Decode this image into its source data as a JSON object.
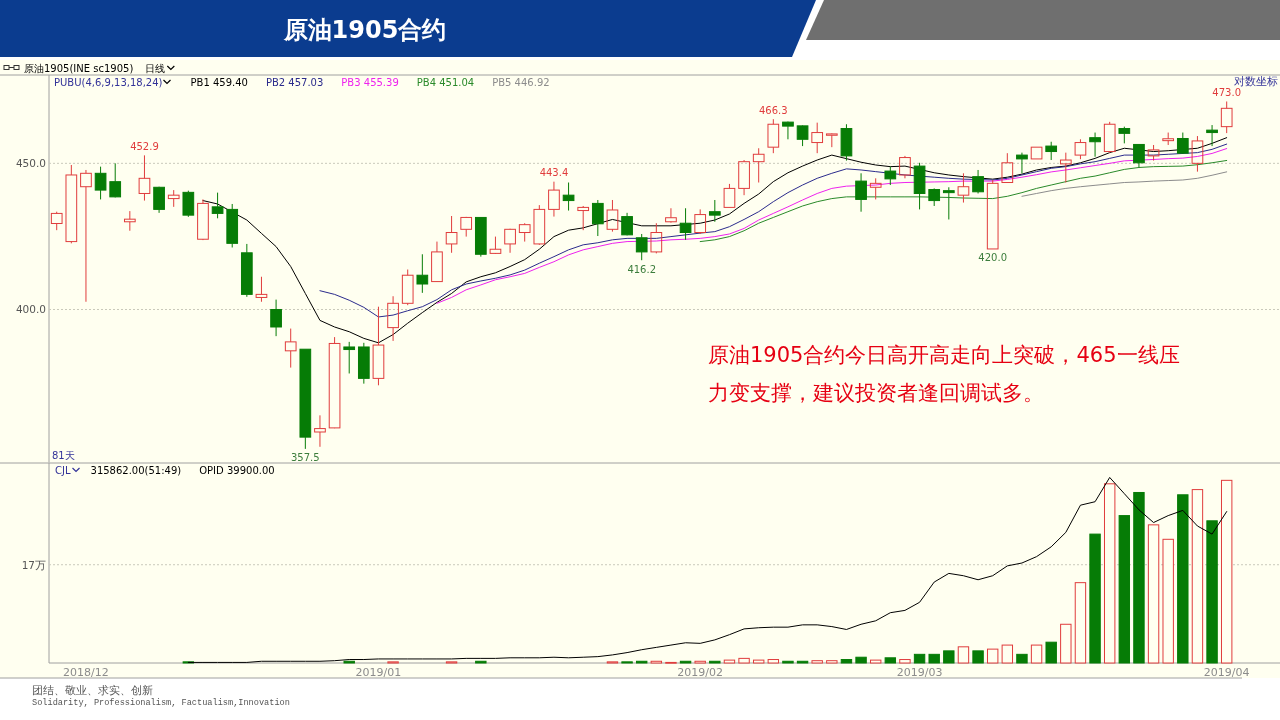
{
  "chart_data": [
    {
      "type": "candlestick",
      "title": "原油1905合约",
      "subtitle": "原油1905(INE sc1905)",
      "legend_title": "PUBU(4,6,9,13,18,24)",
      "categories": [
        null,
        null,
        null,
        null,
        null,
        null,
        null,
        null,
        null,
        null,
        null,
        null,
        null,
        null,
        null,
        null,
        null,
        null,
        null,
        null,
        null,
        null,
        null,
        null,
        null,
        null,
        null,
        null,
        null,
        null,
        null,
        null,
        null,
        null,
        null,
        null,
        null,
        null,
        null,
        null,
        null,
        null,
        null,
        null,
        null,
        null,
        null,
        null,
        null,
        null,
        null,
        null,
        null,
        null,
        null,
        null,
        null,
        null,
        null,
        null,
        null,
        null,
        null,
        null,
        null,
        null,
        null,
        null,
        null,
        null,
        null,
        null,
        null,
        null,
        null,
        null,
        null,
        null,
        null,
        null,
        null
      ],
      "ohlc": [
        [
          428.7,
          432.8,
          426.4,
          432.2
        ],
        [
          422.5,
          449.4,
          421.9,
          445.8
        ],
        [
          441.6,
          447.6,
          402.5,
          446.4
        ],
        [
          446.4,
          448.8,
          437.1,
          440.4
        ],
        [
          443.4,
          450.0,
          437.8,
          438.0
        ],
        [
          429.3,
          433.0,
          426.2,
          430.2
        ],
        [
          439.2,
          452.9,
          436.7,
          444.6
        ],
        [
          441.4,
          441.6,
          432.4,
          433.6
        ],
        [
          437.4,
          440.4,
          434.5,
          438.6
        ],
        [
          439.6,
          440.2,
          431.0,
          431.6
        ],
        [
          423.3,
          437.1,
          423.0,
          435.7
        ],
        [
          434.5,
          439.5,
          430.5,
          432.2
        ],
        [
          433.6,
          435.5,
          420.5,
          421.9
        ],
        [
          418.7,
          421.7,
          404.1,
          404.9
        ],
        [
          403.9,
          410.7,
          402.5,
          404.9
        ],
        [
          400.0,
          403.2,
          391.5,
          394.4
        ],
        [
          386.9,
          393.9,
          381.7,
          389.7
        ],
        [
          387.4,
          387.4,
          357.5,
          360.9
        ],
        [
          362.4,
          367.3,
          358.1,
          363.4
        ],
        [
          363.6,
          391.2,
          363.5,
          389.2
        ],
        [
          388.1,
          389.7,
          379.9,
          387.3
        ],
        [
          388.1,
          389.4,
          376.8,
          378.4
        ],
        [
          378.4,
          400.9,
          376.3,
          388.7
        ],
        [
          394.2,
          404.3,
          390.0,
          402.0
        ],
        [
          402.0,
          413.1,
          401.4,
          411.2
        ],
        [
          411.2,
          418.2,
          405.4,
          408.3
        ],
        [
          409.1,
          422.5,
          409.0,
          419.0
        ],
        [
          421.7,
          431.3,
          418.7,
          425.6
        ],
        [
          426.7,
          431.0,
          424.2,
          430.8
        ],
        [
          430.8,
          430.8,
          417.4,
          418.2
        ],
        [
          418.5,
          424.2,
          418.3,
          419.9
        ],
        [
          421.7,
          426.9,
          418.7,
          426.7
        ],
        [
          425.6,
          428.8,
          422.5,
          428.3
        ],
        [
          421.7,
          435.1,
          421.4,
          433.6
        ],
        [
          433.6,
          443.4,
          431.1,
          440.4
        ],
        [
          438.6,
          443.1,
          433.2,
          436.7
        ],
        [
          433.2,
          434.8,
          426.4,
          434.3
        ],
        [
          435.7,
          436.9,
          424.4,
          428.6
        ],
        [
          426.7,
          436.9,
          425.9,
          433.4
        ],
        [
          431.1,
          432.4,
          424.6,
          424.8
        ],
        [
          423.8,
          425.1,
          416.2,
          419.0
        ],
        [
          419.0,
          428.8,
          418.5,
          425.6
        ],
        [
          429.3,
          434.0,
          429.0,
          430.7
        ],
        [
          428.8,
          434.0,
          423.1,
          425.6
        ],
        [
          425.6,
          433.6,
          425.1,
          431.8
        ],
        [
          432.8,
          436.9,
          429.3,
          431.6
        ],
        [
          434.3,
          442.6,
          434.3,
          441.0
        ],
        [
          441.0,
          451.2,
          438.6,
          450.6
        ],
        [
          450.6,
          455.5,
          443.1,
          453.3
        ],
        [
          455.9,
          466.3,
          453.7,
          464.4
        ],
        [
          465.2,
          465.4,
          458.8,
          463.7
        ],
        [
          463.8,
          464.0,
          456.3,
          458.8
        ],
        [
          457.6,
          465.0,
          453.7,
          461.3
        ],
        [
          460.3,
          461.0,
          455.9,
          460.8
        ],
        [
          462.8,
          464.4,
          451.0,
          452.7
        ],
        [
          443.6,
          446.4,
          432.8,
          437.1
        ],
        [
          441.4,
          444.6,
          437.1,
          442.8
        ],
        [
          447.2,
          448.8,
          442.2,
          444.4
        ],
        [
          445.8,
          452.7,
          444.6,
          452.1
        ],
        [
          449.0,
          450.2,
          433.6,
          439.2
        ],
        [
          440.6,
          441.0,
          434.8,
          436.7
        ],
        [
          440.2,
          441.4,
          430.1,
          439.5
        ],
        [
          438.6,
          446.4,
          436.0,
          441.6
        ],
        [
          445.2,
          447.6,
          439.2,
          439.8
        ],
        [
          420.0,
          444.0,
          420.0,
          442.8
        ],
        [
          443.1,
          453.7,
          443.1,
          450.2
        ],
        [
          453.0,
          453.9,
          446.4,
          451.6
        ],
        [
          451.6,
          455.9,
          451.6,
          455.9
        ],
        [
          456.3,
          457.9,
          451.2,
          454.3
        ],
        [
          449.8,
          453.9,
          443.1,
          451.2
        ],
        [
          453.0,
          458.8,
          451.5,
          457.6
        ],
        [
          459.4,
          461.3,
          452.4,
          457.9
        ],
        [
          454.3,
          465.3,
          453.9,
          464.4
        ],
        [
          462.8,
          463.5,
          457.3,
          461.0
        ],
        [
          456.9,
          457.0,
          448.5,
          450.2
        ],
        [
          452.7,
          456.7,
          451.0,
          454.9
        ],
        [
          458.3,
          461.3,
          456.7,
          459.0
        ],
        [
          459.1,
          461.3,
          453.4,
          453.7
        ],
        [
          450.0,
          460.0,
          447.0,
          458.2
        ],
        [
          462.2,
          464.1,
          456.3,
          461.3
        ],
        [
          463.5,
          473.0,
          461.1,
          470.4
        ]
      ],
      "colors": [
        "#e03c3c",
        "#e03c3c",
        "#e03c3c",
        "#067c06",
        "#067c06",
        "#e03c3c",
        "#e03c3c",
        "#067c06",
        "#e03c3c",
        "#067c06",
        "#e03c3c",
        "#067c06",
        "#067c06",
        "#067c06",
        "#e03c3c",
        "#067c06",
        "#e03c3c",
        "#067c06",
        "#e03c3c",
        "#e03c3c",
        "#067c06",
        "#067c06",
        "#e03c3c",
        "#e03c3c",
        "#e03c3c",
        "#067c06",
        "#e03c3c",
        "#e03c3c",
        "#e03c3c",
        "#067c06",
        "#e03c3c",
        "#e03c3c",
        "#e03c3c",
        "#e03c3c",
        "#e03c3c",
        "#067c06",
        "#e03c3c",
        "#067c06",
        "#e03c3c",
        "#067c06",
        "#067c06",
        "#e03c3c",
        "#e03c3c",
        "#067c06",
        "#e03c3c",
        "#067c06",
        "#e03c3c",
        "#e03c3c",
        "#e03c3c",
        "#e03c3c",
        "#067c06",
        "#067c06",
        "#e03c3c",
        "#e03c3c",
        "#067c06",
        "#067c06",
        "#e03c3c",
        "#067c06",
        "#e03c3c",
        "#067c06",
        "#067c06",
        "#067c06",
        "#e03c3c",
        "#067c06",
        "#e03c3c",
        "#e03c3c",
        "#067c06",
        "#e03c3c",
        "#067c06",
        "#e03c3c",
        "#e03c3c",
        "#067c06",
        "#e03c3c",
        "#067c06",
        "#067c06",
        "#e03c3c",
        "#e03c3c",
        "#067c06",
        "#e03c3c",
        "#067c06",
        "#e03c3c"
      ],
      "value_labels": [
        null,
        null,
        null,
        null,
        null,
        null,
        "452.9",
        null,
        null,
        null,
        null,
        null,
        null,
        null,
        null,
        null,
        null,
        "357.5",
        null,
        null,
        null,
        null,
        null,
        null,
        null,
        null,
        null,
        null,
        null,
        null,
        null,
        null,
        null,
        null,
        "443.4",
        null,
        null,
        null,
        null,
        null,
        "416.2",
        null,
        null,
        null,
        null,
        null,
        null,
        null,
        null,
        "466.3",
        null,
        null,
        null,
        null,
        null,
        null,
        null,
        null,
        null,
        null,
        null,
        null,
        null,
        null,
        "420.0",
        null,
        null,
        null,
        null,
        null,
        null,
        null,
        null,
        null,
        null,
        null,
        null,
        null,
        null,
        null,
        "473.0"
      ],
      "series": [
        {
          "type": "line",
          "name": "PB1 459.40",
          "color": "#000000",
          "values": [
            null,
            null,
            null,
            null,
            null,
            null,
            null,
            null,
            null,
            null,
            436.7,
            435.5,
            null,
            429.9,
            425.3,
            420.8,
            414.1,
            405.2,
            396.5,
            394.4,
            392.9,
            390.8,
            389.4,
            392.0,
            395.6,
            399.0,
            402.3,
            405.2,
            409.0,
            410.7,
            412.0,
            414.1,
            416.4,
            419.9,
            424.2,
            426.4,
            427.2,
            null,
            430.1,
            null,
            427.9,
            427.9,
            427.9,
            null,
            428.8,
            429.9,
            432.0,
            435.7,
            439.0,
            443.4,
            446.6,
            449.0,
            451.2,
            453.0,
            null,
            450.4,
            449.4,
            448.8,
            449.0,
            null,
            446.6,
            445.8,
            445.2,
            null,
            444.3,
            445.0,
            446.1,
            447.6,
            448.5,
            449.0,
            450.2,
            451.8,
            453.9,
            455.5,
            null,
            454.3,
            454.6,
            null,
            455.5,
            457.3,
            459.4
          ]
        },
        {
          "type": "line",
          "name": "PB2 457.03",
          "color": "#2b2b8c",
          "values": [
            null,
            null,
            null,
            null,
            null,
            null,
            null,
            null,
            null,
            null,
            null,
            null,
            null,
            null,
            null,
            null,
            null,
            null,
            406.1,
            404.9,
            403.0,
            400.7,
            397.6,
            398.2,
            399.6,
            400.9,
            403.2,
            406.4,
            408.3,
            409.3,
            410.2,
            411.3,
            412.9,
            415.2,
            417.4,
            419.7,
            421.4,
            422.1,
            423.1,
            423.6,
            null,
            423.6,
            424.2,
            424.8,
            425.4,
            425.9,
            427.6,
            430.1,
            432.8,
            436.3,
            439.5,
            442.2,
            444.6,
            446.4,
            448.0,
            447.6,
            447.0,
            null,
            445.8,
            null,
            445.0,
            444.6,
            444.3,
            null,
            444.0,
            444.6,
            445.8,
            447.0,
            448.2,
            448.8,
            449.8,
            450.6,
            451.8,
            453.0,
            null,
            453.0,
            453.3,
            null,
            453.9,
            455.1,
            457.03
          ]
        },
        {
          "type": "line",
          "name": "PB3 455.39",
          "color": "#ee22ee",
          "values": [
            null,
            null,
            null,
            null,
            null,
            null,
            null,
            null,
            null,
            null,
            null,
            null,
            null,
            null,
            null,
            null,
            null,
            null,
            null,
            null,
            null,
            null,
            null,
            null,
            null,
            null,
            402.0,
            403.9,
            406.4,
            408.0,
            409.7,
            410.7,
            411.8,
            413.8,
            415.7,
            418.0,
            419.7,
            420.8,
            421.9,
            422.5,
            null,
            422.7,
            423.1,
            423.3,
            423.6,
            424.2,
            425.1,
            427.0,
            429.9,
            432.2,
            434.5,
            436.9,
            439.2,
            441.0,
            441.8,
            null,
            442.2,
            442.8,
            443.1,
            null,
            443.3,
            443.4,
            443.6,
            null,
            443.6,
            444.2,
            445.0,
            445.9,
            446.9,
            447.6,
            448.4,
            449.2,
            450.0,
            450.9,
            null,
            451.4,
            451.7,
            451.9,
            452.5,
            453.6,
            455.39
          ]
        },
        {
          "type": "line",
          "name": "PB4 451.04",
          "color": "#2a8a2a",
          "values": [
            null,
            null,
            null,
            null,
            null,
            null,
            null,
            null,
            null,
            null,
            null,
            null,
            null,
            null,
            null,
            null,
            null,
            null,
            null,
            null,
            null,
            null,
            null,
            null,
            null,
            null,
            null,
            null,
            null,
            null,
            null,
            null,
            null,
            null,
            null,
            null,
            null,
            null,
            null,
            null,
            null,
            null,
            null,
            null,
            422.5,
            423.1,
            424.2,
            426.2,
            428.8,
            430.8,
            432.8,
            434.8,
            436.3,
            437.4,
            438.0,
            null,
            438.0,
            438.0,
            438.0,
            438.0,
            null,
            437.8,
            437.6,
            437.5,
            437.4,
            438.2,
            439.5,
            441.0,
            442.2,
            443.4,
            444.6,
            445.4,
            446.6,
            447.8,
            448.5,
            448.8,
            448.9,
            449.0,
            449.5,
            450.2,
            451.04
          ]
        },
        {
          "type": "line",
          "name": "PB5 446.92",
          "color": "#8c8c8c",
          "values": [
            null,
            null,
            null,
            null,
            null,
            null,
            null,
            null,
            null,
            null,
            null,
            null,
            null,
            null,
            null,
            null,
            null,
            null,
            null,
            null,
            null,
            null,
            null,
            null,
            null,
            null,
            null,
            null,
            null,
            null,
            null,
            null,
            null,
            null,
            null,
            null,
            null,
            null,
            null,
            null,
            null,
            null,
            null,
            null,
            null,
            null,
            null,
            null,
            null,
            null,
            null,
            null,
            null,
            null,
            null,
            null,
            null,
            null,
            null,
            null,
            null,
            null,
            null,
            null,
            null,
            null,
            438.2,
            439.2,
            440.2,
            441.0,
            441.6,
            442.1,
            442.6,
            443.1,
            443.3,
            443.6,
            443.8,
            444.0,
            444.6,
            445.7,
            446.92
          ]
        }
      ],
      "ylim": [
        353.6,
        483.2
      ],
      "yticks": [
        {
          "value": 450,
          "label": "450.0"
        },
        {
          "value": 400,
          "label": "400.0"
        }
      ],
      "log": true,
      "grid": "y",
      "legend": "top left",
      "tick_labels": "y",
      "annotations": [
        "日线",
        "对数坐标",
        "81天",
        "原油1905合约今日高开高走向上突破，465一线压力变支撑，建议投资者逢回调试多。"
      ]
    },
    {
      "type": "bar",
      "categories": [
        null,
        null,
        "2018/12",
        null,
        null,
        null,
        null,
        null,
        null,
        null,
        null,
        null,
        null,
        null,
        null,
        null,
        null,
        null,
        null,
        null,
        null,
        null,
        "2019/01",
        null,
        null,
        null,
        null,
        null,
        null,
        null,
        null,
        null,
        null,
        null,
        null,
        null,
        null,
        null,
        null,
        null,
        null,
        null,
        null,
        null,
        "2019/02",
        null,
        null,
        null,
        null,
        null,
        null,
        null,
        null,
        null,
        null,
        null,
        null,
        null,
        null,
        "2019/03",
        null,
        null,
        null,
        null,
        null,
        null,
        null,
        null,
        null,
        null,
        null,
        null,
        null,
        null,
        null,
        null,
        null,
        null,
        null,
        null,
        "2019/04"
      ],
      "series": [
        {
          "colors": [
            null,
            null,
            null,
            null,
            null,
            null,
            null,
            null,
            null,
            "#067c06",
            null,
            null,
            null,
            null,
            null,
            null,
            null,
            null,
            null,
            null,
            "#067c06",
            null,
            null,
            "#e03c3c",
            null,
            null,
            null,
            "#e03c3c",
            null,
            "#067c06",
            null,
            null,
            null,
            null,
            null,
            null,
            null,
            null,
            "#e03c3c",
            "#067c06",
            "#067c06",
            "#e03c3c",
            "#e03c3c",
            "#067c06",
            "#e03c3c",
            "#067c06",
            "#e03c3c",
            "#e03c3c",
            "#e03c3c",
            "#e03c3c",
            "#067c06",
            "#067c06",
            "#e03c3c",
            "#e03c3c",
            "#067c06",
            "#067c06",
            "#e03c3c",
            "#067c06",
            "#e03c3c",
            "#067c06",
            "#067c06",
            "#067c06",
            "#e03c3c",
            "#067c06",
            "#e03c3c",
            "#e03c3c",
            "#067c06",
            "#e03c3c",
            "#067c06",
            "#e03c3c",
            "#e03c3c",
            "#067c06",
            "#e03c3c",
            "#067c06",
            "#067c06",
            "#e03c3c",
            "#e03c3c",
            "#067c06",
            "#e03c3c",
            "#067c06",
            "#e03c3c"
          ],
          "values": [
            null,
            null,
            null,
            null,
            null,
            null,
            null,
            null,
            null,
            0.2,
            null,
            null,
            null,
            null,
            null,
            null,
            null,
            null,
            null,
            null,
            0.3,
            null,
            null,
            0.2,
            null,
            null,
            null,
            0.2,
            null,
            0.3,
            null,
            null,
            null,
            null,
            null,
            null,
            null,
            null,
            0.2,
            0.2,
            0.3,
            0.3,
            0.1,
            0.3,
            0.3,
            0.3,
            0.5,
            0.8,
            0.5,
            0.6,
            0.3,
            0.3,
            0.4,
            0.4,
            0.6,
            1.0,
            0.5,
            0.9,
            0.6,
            1.5,
            1.5,
            2.1,
            2.8,
            2.1,
            2.4,
            3.1,
            1.5,
            3.1,
            3.6,
            6.7,
            13.9,
            22.3,
            31.0,
            25.5,
            29.5,
            23.9,
            21.4,
            29.1,
            30.0,
            24.6,
            31.6
          ]
        },
        {
          "type": "line",
          "color": "#000000",
          "values": [
            null,
            null,
            null,
            null,
            null,
            null,
            null,
            null,
            null,
            0.1,
            0.1,
            0.1,
            0.1,
            0.1,
            0.3,
            0.3,
            0.3,
            0.3,
            0.3,
            0.4,
            0.6,
            0.6,
            0.7,
            0.7,
            0.7,
            0.7,
            0.7,
            0.7,
            0.8,
            0.8,
            0.8,
            0.9,
            0.9,
            0.9,
            1.0,
            0.9,
            1.0,
            1.1,
            1.4,
            1.8,
            2.3,
            2.7,
            3.1,
            3.5,
            3.4,
            4.0,
            4.9,
            5.9,
            6.1,
            6.2,
            6.2,
            6.6,
            6.6,
            6.3,
            5.8,
            6.7,
            7.3,
            8.7,
            9.1,
            10.5,
            14.0,
            15.5,
            15.1,
            14.4,
            15.1,
            16.8,
            17.3,
            18.4,
            20.1,
            22.6,
            27.3,
            27.9,
            32.1,
            29.3,
            26.5,
            24.3,
            25.5,
            26.4,
            23.7,
            22.3,
            26.2
          ]
        }
      ],
      "ylim": [
        0,
        34.6
      ],
      "yticks": [
        {
          "value": 17,
          "label": "17万"
        }
      ],
      "grid": "y",
      "annotations": [
        "CJL",
        "315862.00(51:49)",
        "OPID 39900.00",
        "团结、敬业、求实、创新",
        "Solidarity, Professionalism, Factualism,Innovation"
      ]
    }
  ]
}
